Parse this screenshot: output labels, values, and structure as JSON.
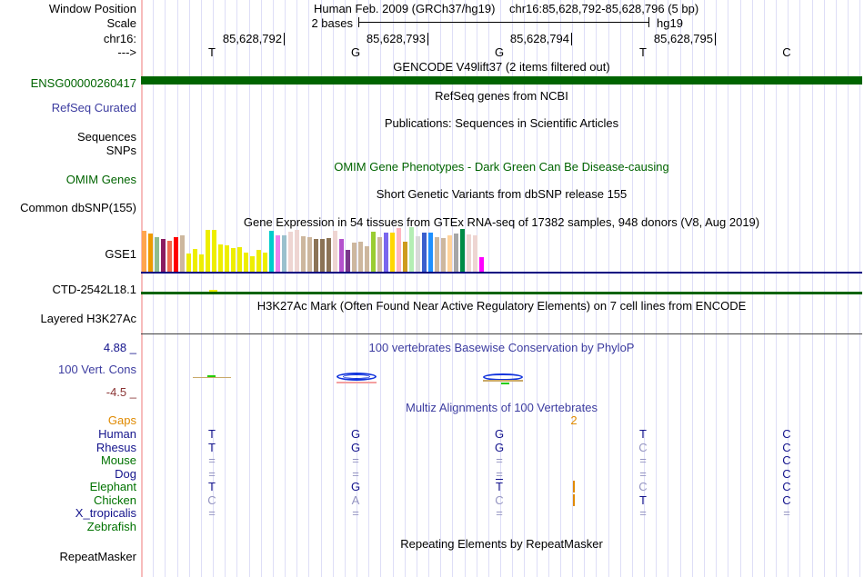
{
  "header": {
    "window_position_label": "Window Position",
    "assembly_title": "Human Feb. 2009 (GRCh37/hg19)",
    "position_range": "chr16:85,628,792-85,628,796 (5 bp)",
    "scale_label": "Scale",
    "scale_value": "2 bases",
    "scale_assembly": "hg19",
    "chrom_label": "chr16:",
    "direction_label": "--->",
    "ruler_ticks": [
      "85,628,792",
      "85,628,793",
      "85,628,794",
      "85,628,795"
    ],
    "bases": [
      "T",
      "G",
      "G",
      "T",
      "C"
    ]
  },
  "left_labels": {
    "gene": "ENSG00000260417",
    "refseq": "RefSeq Curated",
    "sequences": "Sequences",
    "snps": "SNPs",
    "omim": "OMIM Genes",
    "dbsnp": "Common dbSNP(155)",
    "gse1": "GSE1",
    "ctd": "CTD-2542L18.1",
    "h3k27ac": "Layered H3K27Ac",
    "phylop_max": "4.88 _",
    "vert_cons": "100 Vert. Cons",
    "phylop_min": "-4.5 _",
    "repeatmasker": "RepeatMasker"
  },
  "track_titles": {
    "gencode": "GENCODE V49lift37 (2 items filtered out)",
    "refseq": "RefSeq genes from NCBI",
    "publications": "Publications: Sequences in Scientific Articles",
    "omim": "OMIM Gene Phenotypes - Dark Green Can Be Disease-causing",
    "dbsnp": "Short Genetic Variants from dbSNP release 155",
    "gtex": "Gene Expression in 54 tissues from GTEx RNA-seq of 17382 samples, 948 donors (V8, Aug 2019)",
    "h3k27ac": "H3K27Ac Mark (Often Found Near Active Regulatory Elements) on 7 cell lines from ENCODE",
    "phylop": "100 vertebrates Basewise Conservation by PhyloP",
    "multiz": "Multiz Alignments of 100 Vertebrates",
    "repeatmasker": "Repeating Elements by RepeatMasker"
  },
  "chart_data": {
    "type": "bar",
    "title": "Gene Expression in 54 tissues from GTEx RNA-seq of 17382 samples, 948 donors (V8, Aug 2019)",
    "note_values_are_bar_heights_px": true,
    "values": [
      45,
      42,
      38,
      36,
      34,
      38,
      40,
      20,
      25,
      19,
      46,
      46,
      30,
      29,
      26,
      27,
      21,
      17,
      24,
      21,
      45,
      40,
      40,
      44,
      46,
      39,
      38,
      36,
      36,
      37,
      45,
      36,
      24,
      32,
      33,
      28,
      44,
      38,
      43,
      43,
      48,
      33,
      49,
      39,
      43,
      43,
      38,
      37,
      40,
      42,
      47,
      41,
      40,
      16
    ],
    "colors": [
      "#FFA54F",
      "#EE9A00",
      "#8FBC8F",
      "#8B1C62",
      "#EE6A50",
      "#FF0000",
      "#CDB79E",
      "#EEEE00",
      "#EEEE00",
      "#EEEE00",
      "#EEEE00",
      "#EEEE00",
      "#EEEE00",
      "#EEEE00",
      "#EEEE00",
      "#EEEE00",
      "#EEEE00",
      "#EEEE00",
      "#EEEE00",
      "#EEEE00",
      "#00CDCD",
      "#EE82EE",
      "#9AC0CD",
      "#EED5D2",
      "#EED5D2",
      "#CDB79E",
      "#CDB79E",
      "#8B7355",
      "#8B7355",
      "#8B7355",
      "#EED5D2",
      "#B452CD",
      "#7A378B",
      "#CDB79E",
      "#CDB79E",
      "#CDB79E",
      "#9ACD32",
      "#CDB79E",
      "#7A67EE",
      "#FFD700",
      "#FFB6C1",
      "#CD9B1D",
      "#B4EEB4",
      "#D9D9D9",
      "#3A5FCD",
      "#1E90FF",
      "#CDB79E",
      "#CDB79E",
      "#FFD39B",
      "#A6A6A6",
      "#008B45",
      "#EED5D2",
      "#EED5D2",
      "#FF00FF"
    ]
  },
  "multiz": {
    "gap_row_label": "Gaps",
    "gap_count": "2",
    "rows": [
      {
        "species": "Human",
        "label_color": "#14148C",
        "cells": [
          {
            "b": "T",
            "m": 1
          },
          {
            "b": "G",
            "m": 1
          },
          {
            "b": "G",
            "m": 1
          },
          {
            "b": "T",
            "m": 1
          },
          {
            "b": "C",
            "m": 1
          }
        ]
      },
      {
        "species": "Rhesus",
        "label_color": "#14148C",
        "cells": [
          {
            "b": "T",
            "m": 1
          },
          {
            "b": "G",
            "m": 1
          },
          {
            "b": "G",
            "m": 1
          },
          {
            "b": "C",
            "m": 0
          },
          {
            "b": "C",
            "m": 1
          }
        ]
      },
      {
        "species": "Mouse",
        "label_color": "#007200",
        "cells": [
          {
            "b": "=",
            "m": 0
          },
          {
            "b": "=",
            "m": 0
          },
          {
            "b": "=",
            "m": 0
          },
          {
            "b": "=",
            "m": 0
          },
          {
            "b": "C",
            "m": 1
          }
        ]
      },
      {
        "species": "Dog",
        "label_color": "#14148C",
        "cells": [
          {
            "b": "=",
            "m": 0
          },
          {
            "b": "=",
            "m": 0
          },
          {
            "b": "=",
            "m": 0
          },
          {
            "b": "=",
            "m": 0
          },
          {
            "b": "C",
            "m": 1
          }
        ]
      },
      {
        "species": "Elephant",
        "label_color": "#007200",
        "cells": [
          {
            "b": "T",
            "m": 1
          },
          {
            "b": "G",
            "m": 1
          },
          {
            "b": "T",
            "m": 1,
            "o": 1
          },
          {
            "b": "C",
            "m": 0
          },
          {
            "b": "C",
            "m": 1
          }
        ]
      },
      {
        "species": "Chicken",
        "label_color": "#007200",
        "cells": [
          {
            "b": "C",
            "m": 0
          },
          {
            "b": "A",
            "m": 0
          },
          {
            "b": "C",
            "m": 0
          },
          {
            "b": "T",
            "m": 1
          },
          {
            "b": "C",
            "m": 1
          }
        ]
      },
      {
        "species": "X_tropicalis",
        "label_color": "#14148C",
        "cells": [
          {
            "b": "=",
            "m": 0
          },
          {
            "b": "=",
            "m": 0
          },
          {
            "b": "=",
            "m": 0
          },
          {
            "b": "=",
            "m": 0
          },
          {
            "b": "=",
            "m": 0
          }
        ]
      },
      {
        "species": "Zebrafish",
        "label_color": "#007200",
        "cells": [
          null,
          null,
          null,
          null,
          null
        ]
      }
    ]
  },
  "colors": {
    "gencode_bar": "#006400",
    "ctd_line": "#006400",
    "ctd_tick": "#EEEE00",
    "gtex_baseline": "#000080",
    "h3k27ac_line": "#404040",
    "phylop_ellipse": "#1133DD",
    "phylop_pos": "#C9A96A",
    "phylop_neg": "#F4A0A0",
    "phylop_green": "#22CC00",
    "insert_mark": "#E08A00"
  }
}
